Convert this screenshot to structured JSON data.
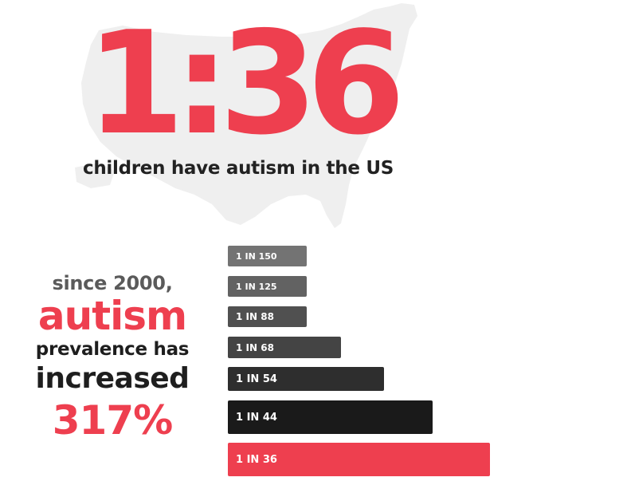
{
  "headline": {
    "ratio": "1:36",
    "subtitle": "children have autism in the US"
  },
  "side_text": {
    "line1": "since 2000,",
    "line2": "autism",
    "line3": "prevalence has",
    "line4": "increased",
    "line5": "317%"
  },
  "colors": {
    "accent": "#ee3f4f",
    "dark_text": "#1e1e1e",
    "map": "#efefef"
  },
  "chart_data": {
    "type": "bar",
    "orientation": "horizontal",
    "measure": "children per autism diagnosis (1 in N)",
    "categories": [
      "1 IN 150",
      "1 IN 125",
      "1 IN 88",
      "1 IN 68",
      "1 IN 54",
      "1 IN 44",
      "1 IN 36"
    ],
    "values": [
      150,
      125,
      88,
      68,
      54,
      44,
      36
    ],
    "bar_colors": [
      "#737373",
      "#626262",
      "#505050",
      "#444444",
      "#2e2e2e",
      "#1a1a1a",
      "#ee3f4f"
    ]
  }
}
